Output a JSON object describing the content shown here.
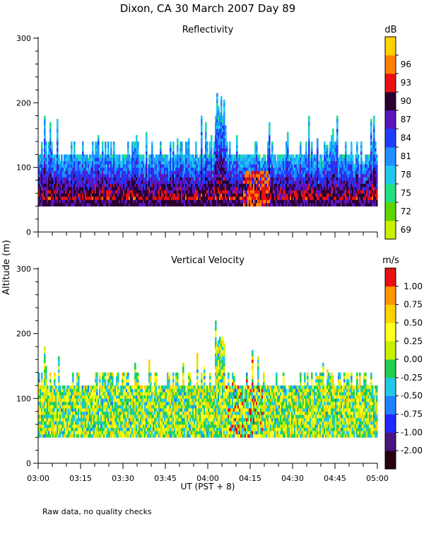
{
  "header": {
    "title": "Dixon, CA 30 March 2007  Day  89"
  },
  "footer": {
    "note": "Raw data, no quality checks"
  },
  "chart_data": [
    {
      "type": "heatmap",
      "title": "Reflectivity",
      "ylabel": "Altitude (m)",
      "xlabel": "UT  (PST + 8)",
      "ylim": [
        0,
        300
      ],
      "yticks": [
        "0",
        "100",
        "200",
        "300"
      ],
      "xticks": [
        "03:00",
        "03:15",
        "03:30",
        "03:45",
        "04:00",
        "04:15",
        "04:30",
        "04:45",
        "05:00"
      ],
      "x_range": [
        "03:00",
        "05:00"
      ],
      "data_altitude_range": [
        40,
        220
      ],
      "colorbar": {
        "unit": "dB",
        "tick_labels": [
          "69",
          "72",
          "75",
          "78",
          "81",
          "84",
          "87",
          "90",
          "93",
          "96"
        ],
        "colors": [
          "#c8f000",
          "#5ed400",
          "#20e080",
          "#20c8f0",
          "#1e90ff",
          "#1e3cff",
          "#5a14c0",
          "#2a0030",
          "#e81010",
          "#ff8000",
          "#ffd200"
        ]
      }
    },
    {
      "type": "heatmap",
      "title": "Vertical Velocity",
      "ylabel": "Altitude (m)",
      "xlabel": "UT  (PST + 8)",
      "ylim": [
        0,
        300
      ],
      "yticks": [
        "0",
        "100",
        "200",
        "300"
      ],
      "xticks": [
        "03:00",
        "03:15",
        "03:30",
        "03:45",
        "04:00",
        "04:15",
        "04:30",
        "04:45",
        "05:00"
      ],
      "x_range": [
        "03:00",
        "05:00"
      ],
      "data_altitude_range": [
        40,
        220
      ],
      "colorbar": {
        "unit": "m/s",
        "tick_labels": [
          "-2.00",
          "-1.00",
          "-0.75",
          "-0.50",
          "-0.25",
          "0.00",
          "0.25",
          "0.50",
          "0.75",
          "1.00"
        ],
        "colors": [
          "#2a0010",
          "#4a1480",
          "#1e28ff",
          "#1e82ff",
          "#20c8e8",
          "#22d050",
          "#c8f000",
          "#ffff20",
          "#ffd200",
          "#ff9600",
          "#e81010"
        ]
      }
    }
  ]
}
